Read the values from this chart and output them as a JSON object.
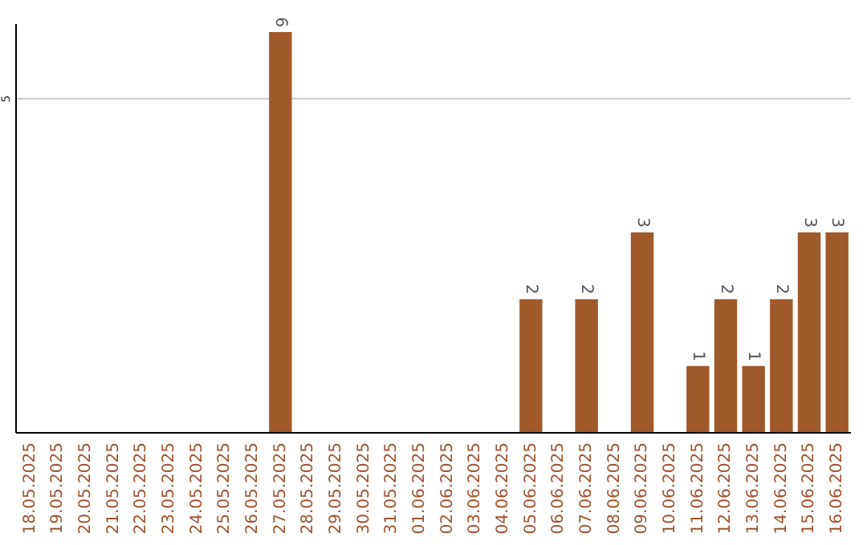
{
  "chart_data": {
    "type": "bar",
    "categories": [
      "18.05.2025",
      "19.05.2025",
      "20.05.2025",
      "21.05.2025",
      "22.05.2025",
      "23.05.2025",
      "24.05.2025",
      "25.05.2025",
      "26.05.2025",
      "27.05.2025",
      "28.05.2025",
      "29.05.2025",
      "30.05.2025",
      "31.05.2025",
      "01.06.2025",
      "02.06.2025",
      "03.06.2025",
      "04.06.2025",
      "05.06.2025",
      "06.06.2025",
      "07.06.2025",
      "08.06.2025",
      "09.06.2025",
      "10.06.2025",
      "11.06.2025",
      "12.06.2025",
      "13.06.2025",
      "14.06.2025",
      "15.06.2025",
      "16.06.2025"
    ],
    "values": [
      0,
      0,
      0,
      0,
      0,
      0,
      0,
      0,
      0,
      6,
      0,
      0,
      0,
      0,
      0,
      0,
      0,
      0,
      2,
      0,
      2,
      0,
      3,
      0,
      1,
      2,
      1,
      2,
      3,
      3
    ],
    "value_labels": [
      null,
      null,
      null,
      null,
      null,
      null,
      null,
      null,
      null,
      "6",
      null,
      null,
      null,
      null,
      null,
      null,
      null,
      null,
      "2",
      null,
      "2",
      null,
      "3",
      null,
      "1",
      "2",
      "1",
      "2",
      "3",
      "3"
    ],
    "color": "#a0592a",
    "ylim": [
      0,
      6
    ],
    "yticks": [
      5
    ],
    "grid": "y"
  }
}
